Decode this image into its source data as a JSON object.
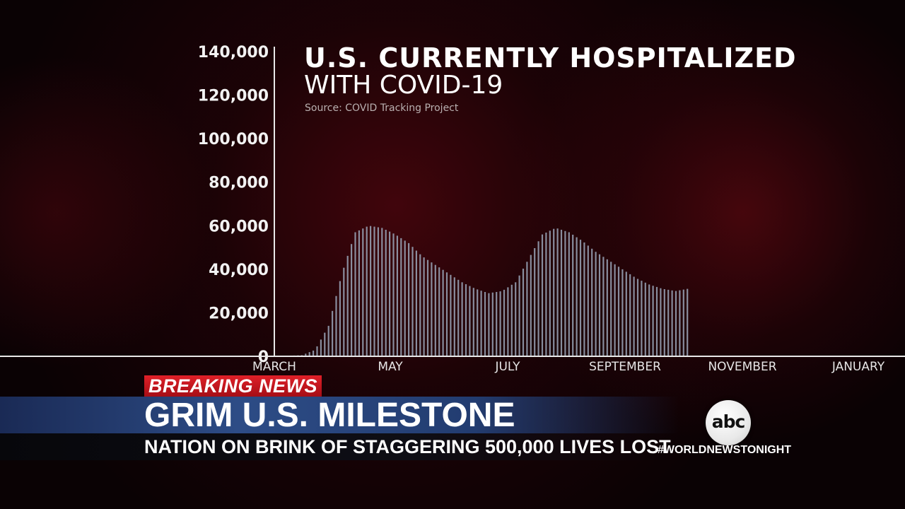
{
  "chart_data": {
    "type": "bar",
    "title": "U.S. CURRENTLY HOSPITALIZED",
    "subtitle": "WITH COVID-19",
    "source": "Source: COVID Tracking Project",
    "x_tick_labels": [
      "MARCH",
      "MAY",
      "JULY",
      "SEPTEMBER",
      "NOVEMBER",
      "JANUARY"
    ],
    "y_tick_labels": [
      "140,000",
      "120,000",
      "100,000",
      "80,000",
      "60,000",
      "40,000",
      "20,000",
      "0"
    ],
    "ylim": [
      0,
      140000
    ],
    "x_range": [
      "2020-03-01",
      "2021-01-31"
    ],
    "grid": false,
    "bar_color": "#9aa6b8",
    "series": [
      {
        "x": [
          "2020-03-01",
          "2020-03-15",
          "2020-03-22",
          "2020-03-29",
          "2020-04-05",
          "2020-04-12",
          "2020-04-19",
          "2020-04-26",
          "2020-05-03",
          "2020-05-10",
          "2020-05-17",
          "2020-05-24",
          "2020-05-31",
          "2020-06-07",
          "2020-06-14",
          "2020-06-21",
          "2020-06-28",
          "2020-07-05",
          "2020-07-12",
          "2020-07-19",
          "2020-07-26",
          "2020-08-02",
          "2020-08-09",
          "2020-08-16",
          "2020-08-23",
          "2020-08-30",
          "2020-09-06",
          "2020-09-13",
          "2020-09-20",
          "2020-09-27",
          "2020-10-03"
        ],
        "values": [
          0,
          500,
          3000,
          14000,
          38000,
          57000,
          60000,
          59000,
          56000,
          52000,
          46000,
          42000,
          38000,
          34000,
          31000,
          29000,
          30000,
          34000,
          45000,
          56000,
          59000,
          57000,
          53000,
          48000,
          44000,
          40000,
          36000,
          33000,
          31000,
          30000,
          31000
        ]
      }
    ]
  },
  "ticker": {
    "breaking_label": "BREAKING NEWS",
    "headline": "GRIM U.S. MILESTONE",
    "subline": "NATION ON BRINK OF STAGGERING 500,000 LIVES LOST"
  },
  "network": {
    "logo_text": "abc",
    "hashtag": "#WORLDNEWSTONIGHT"
  }
}
